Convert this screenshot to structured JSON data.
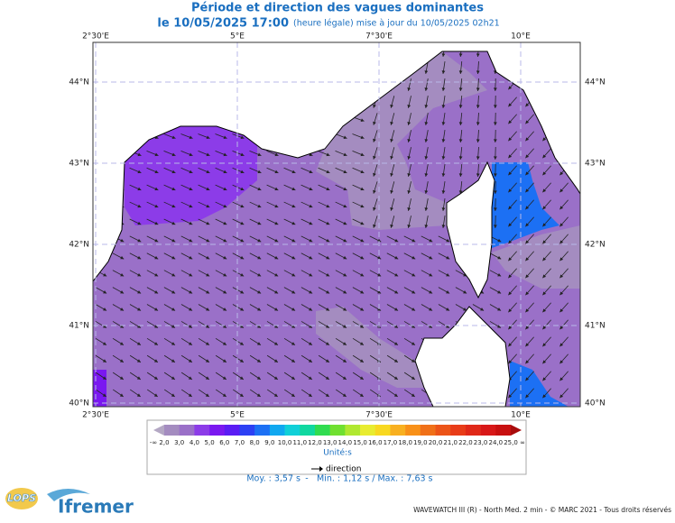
{
  "header": {
    "title": "Période et direction des vagues dominantes",
    "date": "le 10/05/2025 17:00",
    "note": "(heure légale) mise à jour du 10/05/2025 02h21"
  },
  "map": {
    "lon_labels": [
      "2°30'E",
      "5°E",
      "7°30'E",
      "10°E"
    ],
    "lat_labels": [
      "44°N",
      "43°N",
      "42°N",
      "41°N",
      "40°N"
    ]
  },
  "legend": {
    "labels": [
      "-∞",
      "2,0",
      "3,0",
      "4,0",
      "5,0",
      "6,0",
      "7,0",
      "8,0",
      "9,0",
      "10,0",
      "11,0",
      "12,0",
      "13,0",
      "14,0",
      "15,0",
      "16,0",
      "17,0",
      "18,0",
      "19,0",
      "20,0",
      "21,0",
      "22,0",
      "23,0",
      "24,0",
      "25,0",
      "∞"
    ],
    "colors": [
      "#b4a8c4",
      "#a48cc0",
      "#9a70c8",
      "#8c3ce8",
      "#7a18f0",
      "#5a1cf4",
      "#2c40f4",
      "#1c70f4",
      "#10a8f0",
      "#10d0d8",
      "#10d8a0",
      "#30dc50",
      "#70e030",
      "#b0e830",
      "#e8ec30",
      "#f8d820",
      "#f8b020",
      "#f89018",
      "#f07018",
      "#ec5418",
      "#e83c18",
      "#e02818",
      "#d81818",
      "#c81010",
      "#a80c0c"
    ],
    "unit": "Unité:s",
    "direction": "direction",
    "mean": "Moy. : 3,57 s",
    "sep": "-",
    "range": "Min. : 1,12 s / Max. : 7,63 s"
  },
  "footer": {
    "credit": "WAVEWATCH III (R) - North Med. 2 min - © MARC 2021 - Tous droits réservés",
    "logo1": "LOPS",
    "logo2": "Ifremer"
  }
}
